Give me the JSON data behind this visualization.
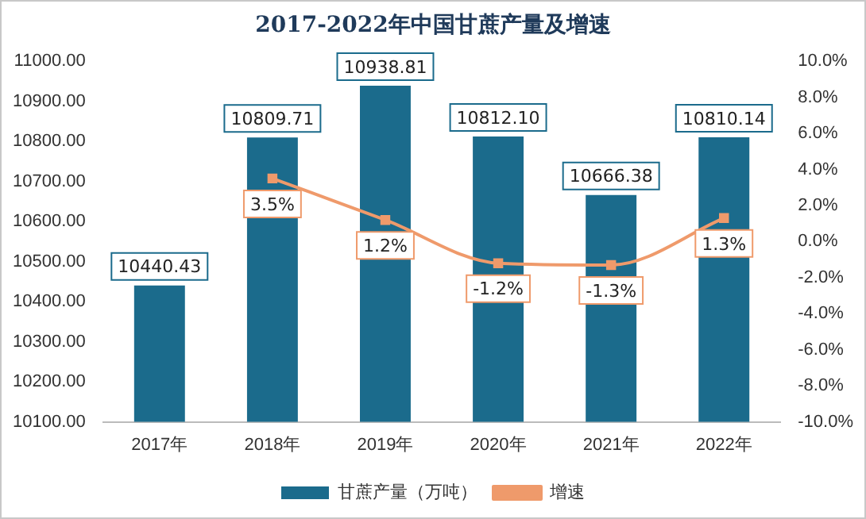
{
  "chart_data": {
    "type": "bar",
    "title": "2017-2022年中国甘蔗产量及增速",
    "categories": [
      "2017年",
      "2018年",
      "2019年",
      "2020年",
      "2021年",
      "2022年"
    ],
    "series": [
      {
        "name": "甘蔗产量（万吨）",
        "color": "#1b6b8c",
        "values": [
          10440.43,
          10809.71,
          10938.81,
          10812.1,
          10666.38,
          10810.14
        ],
        "value_labels": [
          "10440.43",
          "10809.71",
          "10938.81",
          "10812.10",
          "10666.38",
          "10810.14"
        ]
      },
      {
        "name": "增速",
        "type": "line",
        "axis": "y2",
        "color": "#ef9a6b",
        "marker": "square",
        "values": [
          null,
          3.5,
          1.2,
          -1.2,
          -1.3,
          1.3
        ],
        "value_labels": [
          null,
          "3.5%",
          "1.2%",
          "-1.2%",
          "-1.3%",
          "1.3%"
        ]
      }
    ],
    "ylim": [
      10100,
      11000
    ],
    "yticks": [
      {
        "value": 10100,
        "label": "10100.00"
      },
      {
        "value": 10200,
        "label": "10200.00"
      },
      {
        "value": 10300,
        "label": "10300.00"
      },
      {
        "value": 10400,
        "label": "10400.00"
      },
      {
        "value": 10500,
        "label": "10500.00"
      },
      {
        "value": 10600,
        "label": "10600.00"
      },
      {
        "value": 10700,
        "label": "10700.00"
      },
      {
        "value": 10800,
        "label": "10800.00"
      },
      {
        "value": 10900,
        "label": "10900.00"
      },
      {
        "value": 11000,
        "label": "11000.00"
      }
    ],
    "y2lim": [
      -10,
      10
    ],
    "y2ticks": [
      {
        "value": -10,
        "label": "-10.0%"
      },
      {
        "value": -8,
        "label": "-8.0%"
      },
      {
        "value": -6,
        "label": "-6.0%"
      },
      {
        "value": -4,
        "label": "-4.0%"
      },
      {
        "value": -2,
        "label": "-2.0%"
      },
      {
        "value": 0,
        "label": "0.0%"
      },
      {
        "value": 2,
        "label": "2.0%"
      },
      {
        "value": 4,
        "label": "4.0%"
      },
      {
        "value": 6,
        "label": "6.0%"
      },
      {
        "value": 8,
        "label": "8.0%"
      },
      {
        "value": 10,
        "label": "10.0%"
      }
    ],
    "grid": false,
    "legend": "bottom"
  }
}
